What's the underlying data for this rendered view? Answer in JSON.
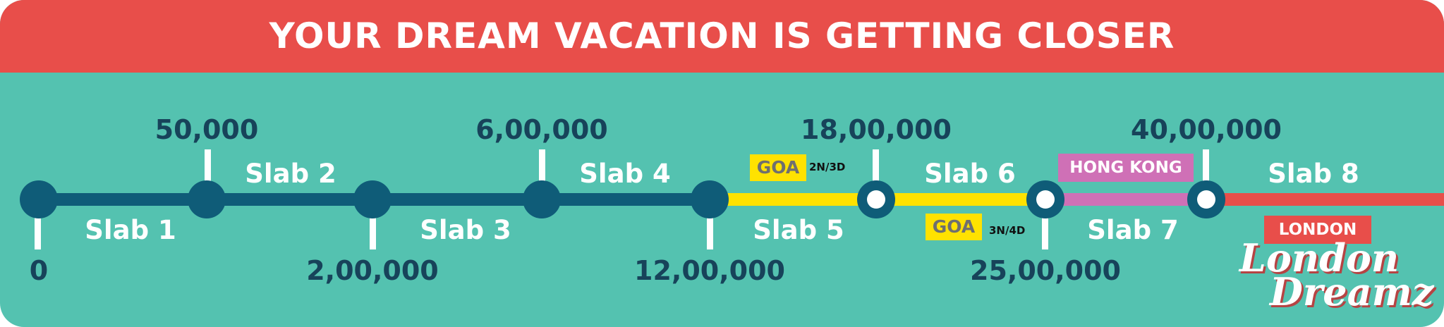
{
  "banner": {
    "title": "YOUR DREAM VACATION IS GETTING CLOSER"
  },
  "timeline": {
    "milestones": [
      "0",
      "50,000",
      "2,00,000",
      "6,00,000",
      "12,00,000",
      "18,00,000",
      "25,00,000",
      "40,00,000"
    ],
    "slabs": [
      "Slab 1",
      "Slab 2",
      "Slab 3",
      "Slab 4",
      "Slab 5",
      "Slab 6",
      "Slab 7",
      "Slab 8"
    ]
  },
  "destinations": {
    "goa_1": {
      "label": "GOA",
      "duration": "2N/3D"
    },
    "goa_2": {
      "label": "GOA",
      "duration": "3N/4D"
    },
    "hong_kong": {
      "label": "HONG KONG"
    },
    "london": {
      "label": "LONDON"
    }
  },
  "logo": {
    "line1": "London",
    "line2": "Dreamz"
  },
  "colors": {
    "banner": "#e84e4a",
    "background": "#54c2b0",
    "navy": "#0f5c78",
    "goa_yellow": "#ffe200",
    "hong_kong_pink": "#cf70b6",
    "london_red": "#e84e4a"
  }
}
